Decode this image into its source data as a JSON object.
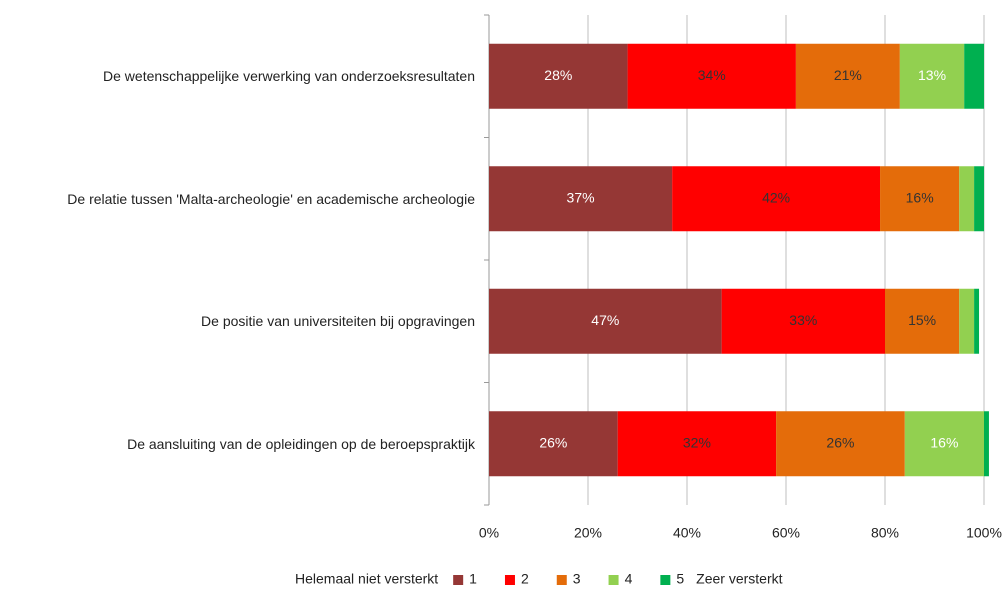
{
  "chart_data": {
    "type": "stacked-bar-horizontal",
    "categories": [
      "De wetenschappelijke verwerking van onderzoeksresultaten",
      "De relatie tussen 'Malta-archeologie' en academische archeologie",
      "De positie van universiteiten bij opgravingen",
      "De aansluiting van de opleidingen op de beroepspraktijk"
    ],
    "series": [
      {
        "name": "1",
        "color": "#953735",
        "label_color": "#ffffff",
        "values": [
          28,
          37,
          47,
          26
        ],
        "value_labels": [
          "28%",
          "37%",
          "47%",
          "26%"
        ]
      },
      {
        "name": "2",
        "color": "#ff0000",
        "label_color": "#333333",
        "values": [
          34,
          42,
          33,
          32
        ],
        "value_labels": [
          "34%",
          "42%",
          "33%",
          "32%"
        ]
      },
      {
        "name": "3",
        "color": "#e46c0a",
        "label_color": "#333333",
        "values": [
          21,
          16,
          15,
          26
        ],
        "value_labels": [
          "21%",
          "16%",
          "15%",
          "26%"
        ]
      },
      {
        "name": "4",
        "color": "#92d050",
        "label_color": "#ffffff",
        "values": [
          13,
          3,
          3,
          16
        ],
        "value_labels": [
          "13%",
          null,
          null,
          "16%"
        ]
      },
      {
        "name": "5",
        "color": "#00b050",
        "label_color": "#ffffff",
        "values": [
          4,
          2,
          1,
          1
        ],
        "value_labels": [
          null,
          null,
          null,
          null
        ]
      }
    ],
    "legend_start": "Helemaal niet versterkt",
    "legend_end": "Zeer versterkt",
    "xlim": [
      0,
      100
    ],
    "xticks": [
      {
        "value": 0,
        "label": "0%"
      },
      {
        "value": 20,
        "label": "20%"
      },
      {
        "value": 40,
        "label": "40%"
      },
      {
        "value": 60,
        "label": "60%"
      },
      {
        "value": 80,
        "label": "80%"
      },
      {
        "value": 100,
        "label": "100%"
      }
    ],
    "grid": true
  }
}
